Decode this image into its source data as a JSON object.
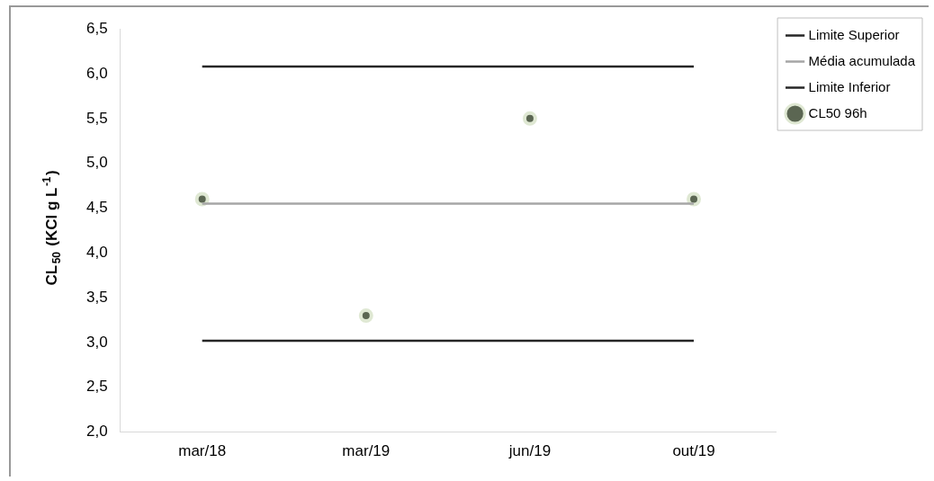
{
  "chart_data": {
    "type": "line",
    "ylabel": "CL$_{50}$ (KCl g L$^{-1}$)",
    "categories": [
      "mar/18",
      "mar/19",
      "jun/19",
      "out/19"
    ],
    "series": [
      {
        "name": "Limite Superior",
        "color": "#262626",
        "values": [
          6.08,
          6.08,
          6.08,
          6.08
        ]
      },
      {
        "name": "Média acumulada",
        "color": "#a6a6a6",
        "values": [
          4.55,
          4.55,
          4.55,
          4.55
        ]
      },
      {
        "name": "Limite Inferior",
        "color": "#262626",
        "values": [
          3.02,
          3.02,
          3.02,
          3.02
        ]
      },
      {
        "name": "CL50 96h",
        "type": "scatter",
        "marker": "circle",
        "color": "#5b6652",
        "values": [
          4.6,
          3.3,
          5.5,
          4.6
        ]
      }
    ],
    "ylim": [
      2.0,
      6.5
    ],
    "yticks": [
      {
        "value": 2.0,
        "label": "2,0"
      },
      {
        "value": 2.5,
        "label": "2,5"
      },
      {
        "value": 3.0,
        "label": "3,0"
      },
      {
        "value": 3.5,
        "label": "3,5"
      },
      {
        "value": 4.0,
        "label": "4,0"
      },
      {
        "value": 4.5,
        "label": "4,5"
      },
      {
        "value": 5.0,
        "label": "5,0"
      },
      {
        "value": 5.5,
        "label": "5,5"
      },
      {
        "value": 6.0,
        "label": "6,0"
      },
      {
        "value": 6.5,
        "label": "6,5"
      }
    ],
    "grid": false,
    "legend": "top right",
    "marker": "none",
    "line_style": "solid"
  }
}
